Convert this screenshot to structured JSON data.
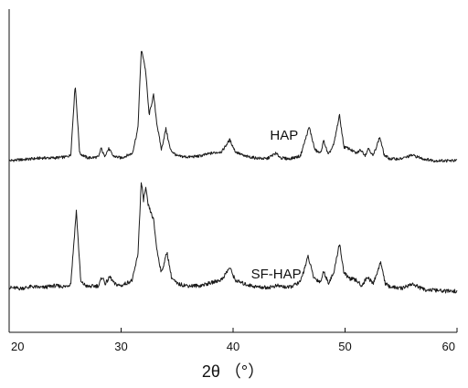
{
  "chart_data": {
    "type": "line",
    "title": "",
    "xlabel": "2θ （°）",
    "ylabel": "",
    "xlim": [
      20,
      60
    ],
    "x_ticks": [
      20,
      30,
      40,
      50,
      60
    ],
    "x_tick_labels": [
      "20",
      "30",
      "40",
      "50",
      "60"
    ],
    "y_ticks_shown": false,
    "grid": false,
    "legend": "none",
    "line_color": "#1a1a1a",
    "series": [
      {
        "name": "HAP",
        "baseline": 0,
        "points": [
          [
            20,
            0
          ],
          [
            21,
            1
          ],
          [
            22,
            2
          ],
          [
            23,
            3
          ],
          [
            24,
            3
          ],
          [
            25,
            4
          ],
          [
            25.5,
            6
          ],
          [
            25.9,
            84
          ],
          [
            26.3,
            8
          ],
          [
            27,
            3
          ],
          [
            28,
            4
          ],
          [
            28.2,
            14
          ],
          [
            28.5,
            5
          ],
          [
            28.9,
            13
          ],
          [
            29.3,
            5
          ],
          [
            30,
            3
          ],
          [
            31,
            8
          ],
          [
            31.5,
            35
          ],
          [
            31.8,
            121
          ],
          [
            32,
            112
          ],
          [
            32.2,
            97
          ],
          [
            32.5,
            50
          ],
          [
            32.9,
            72
          ],
          [
            33.2,
            40
          ],
          [
            33.6,
            12
          ],
          [
            34,
            35
          ],
          [
            34.4,
            12
          ],
          [
            35,
            5
          ],
          [
            36,
            4
          ],
          [
            37,
            5
          ],
          [
            38,
            8
          ],
          [
            39,
            10
          ],
          [
            39.7,
            23
          ],
          [
            40.2,
            10
          ],
          [
            41,
            5
          ],
          [
            42,
            3
          ],
          [
            43,
            2
          ],
          [
            43.8,
            8
          ],
          [
            44.3,
            3
          ],
          [
            45,
            2
          ],
          [
            46,
            5
          ],
          [
            46.8,
            37
          ],
          [
            47.3,
            12
          ],
          [
            47.8,
            8
          ],
          [
            48.1,
            22
          ],
          [
            48.5,
            6
          ],
          [
            49,
            18
          ],
          [
            49.5,
            50
          ],
          [
            49.9,
            15
          ],
          [
            50.4,
            13
          ],
          [
            51,
            8
          ],
          [
            51.4,
            12
          ],
          [
            51.8,
            6
          ],
          [
            52.1,
            14
          ],
          [
            52.5,
            5
          ],
          [
            53.1,
            26
          ],
          [
            53.5,
            6
          ],
          [
            54,
            2
          ],
          [
            55,
            2
          ],
          [
            56,
            6
          ],
          [
            57,
            2
          ],
          [
            58,
            0
          ],
          [
            59,
            0
          ],
          [
            60,
            0
          ]
        ]
      },
      {
        "name": "SF-HAP",
        "baseline": 0,
        "points": [
          [
            20,
            4
          ],
          [
            21,
            3
          ],
          [
            22,
            5
          ],
          [
            23,
            4
          ],
          [
            24,
            6
          ],
          [
            25,
            5
          ],
          [
            25.5,
            8
          ],
          [
            26,
            88
          ],
          [
            26.4,
            10
          ],
          [
            27,
            5
          ],
          [
            28,
            6
          ],
          [
            28.3,
            16
          ],
          [
            28.6,
            8
          ],
          [
            29,
            16
          ],
          [
            29.4,
            8
          ],
          [
            30,
            6
          ],
          [
            31,
            12
          ],
          [
            31.5,
            40
          ],
          [
            31.8,
            120
          ],
          [
            32,
            100
          ],
          [
            32.2,
            113
          ],
          [
            32.4,
            95
          ],
          [
            32.9,
            78
          ],
          [
            33.2,
            45
          ],
          [
            33.6,
            20
          ],
          [
            34.1,
            43
          ],
          [
            34.5,
            15
          ],
          [
            35,
            8
          ],
          [
            36,
            6
          ],
          [
            37,
            6
          ],
          [
            38,
            9
          ],
          [
            39,
            13
          ],
          [
            39.7,
            26
          ],
          [
            40.2,
            12
          ],
          [
            41,
            8
          ],
          [
            42,
            5
          ],
          [
            43,
            4
          ],
          [
            44,
            6
          ],
          [
            45,
            4
          ],
          [
            46,
            10
          ],
          [
            46.7,
            38
          ],
          [
            47.2,
            15
          ],
          [
            47.8,
            10
          ],
          [
            48.1,
            22
          ],
          [
            48.5,
            9
          ],
          [
            49,
            20
          ],
          [
            49.5,
            53
          ],
          [
            49.9,
            20
          ],
          [
            50.4,
            14
          ],
          [
            51,
            12
          ],
          [
            51.5,
            6
          ],
          [
            52,
            16
          ],
          [
            52.5,
            8
          ],
          [
            53.2,
            32
          ],
          [
            53.6,
            8
          ],
          [
            54,
            5
          ],
          [
            55,
            3
          ],
          [
            56,
            8
          ],
          [
            57,
            2
          ],
          [
            58,
            1
          ],
          [
            59,
            0
          ],
          [
            60,
            0
          ]
        ]
      }
    ],
    "annotations": [
      {
        "text": "HAP",
        "x": 43.3
      },
      {
        "text": "SF-HAP",
        "x": 41.6
      }
    ]
  }
}
